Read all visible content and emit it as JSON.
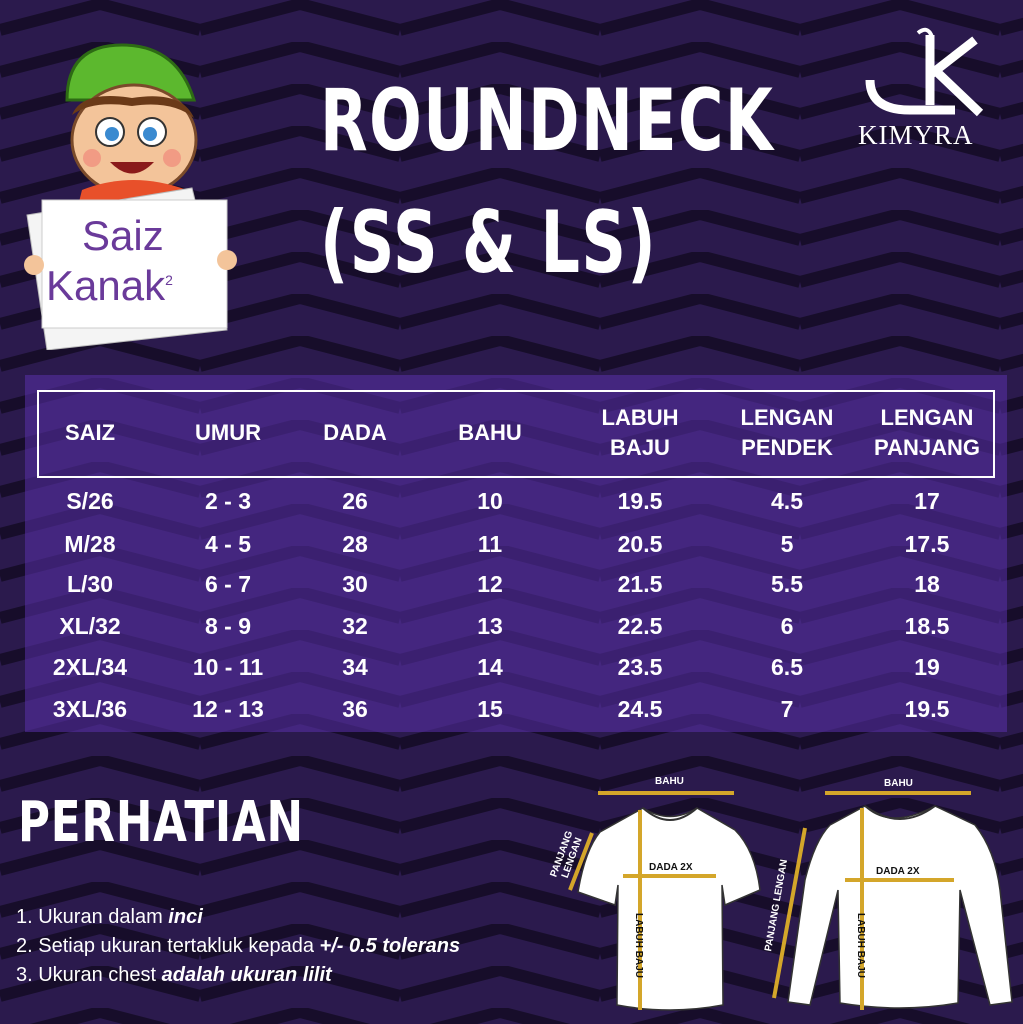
{
  "badge": {
    "line1": "Saiz",
    "line2": "Kanak",
    "superscript": "2"
  },
  "title": {
    "line1": "ROUNDNECK",
    "line2": "(SS & LS)"
  },
  "logo": {
    "text": "KIMYRA"
  },
  "table": {
    "headers": [
      [
        "SAIZ"
      ],
      [
        "UMUR"
      ],
      [
        "DADA"
      ],
      [
        "BAHU"
      ],
      [
        "LABUH",
        "BAJU"
      ],
      [
        "LENGAN",
        "PENDEK"
      ],
      [
        "LENGAN",
        "PANJANG"
      ]
    ],
    "rows": [
      [
        "S/26",
        "2 - 3",
        "26",
        "10",
        "19.5",
        "4.5",
        "17"
      ],
      [
        "M/28",
        "4 - 5",
        "28",
        "11",
        "20.5",
        "5",
        "17.5"
      ],
      [
        "L/30",
        "6 - 7",
        "30",
        "12",
        "21.5",
        "5.5",
        "18"
      ],
      [
        "XL/32",
        "8 - 9",
        "32",
        "13",
        "22.5",
        "6",
        "18.5"
      ],
      [
        "2XL/34",
        "10 - 11",
        "34",
        "14",
        "23.5",
        "6.5",
        "19"
      ],
      [
        "3XL/36",
        "12 - 13",
        "36",
        "15",
        "24.5",
        "7",
        "19.5"
      ]
    ]
  },
  "notice": {
    "heading": "PERHATIAN",
    "items": [
      {
        "text": "1. Ukuran dalam ",
        "bold": "inci"
      },
      {
        "text": "2. Setiap ukuran tertakluk kepada ",
        "bold": "+/- 0.5 tolerans"
      },
      {
        "text": "3. Ukuran chest ",
        "bold": "adalah ukuran lilit"
      }
    ]
  },
  "diagram": {
    "bahu": "BAHU",
    "dada": "DADA 2X",
    "labuh": "LABUH BAJU",
    "panjang_lengan": "PANJANG LENGAN",
    "panjang": "PANJANG",
    "lengan": "LENGAN"
  },
  "colors": {
    "background": "#2b1a4d",
    "panel": "#5a32aa",
    "measure_line": "#d4a62a",
    "badge_text": "#6a3a9a",
    "cap": "#5cb82e"
  }
}
